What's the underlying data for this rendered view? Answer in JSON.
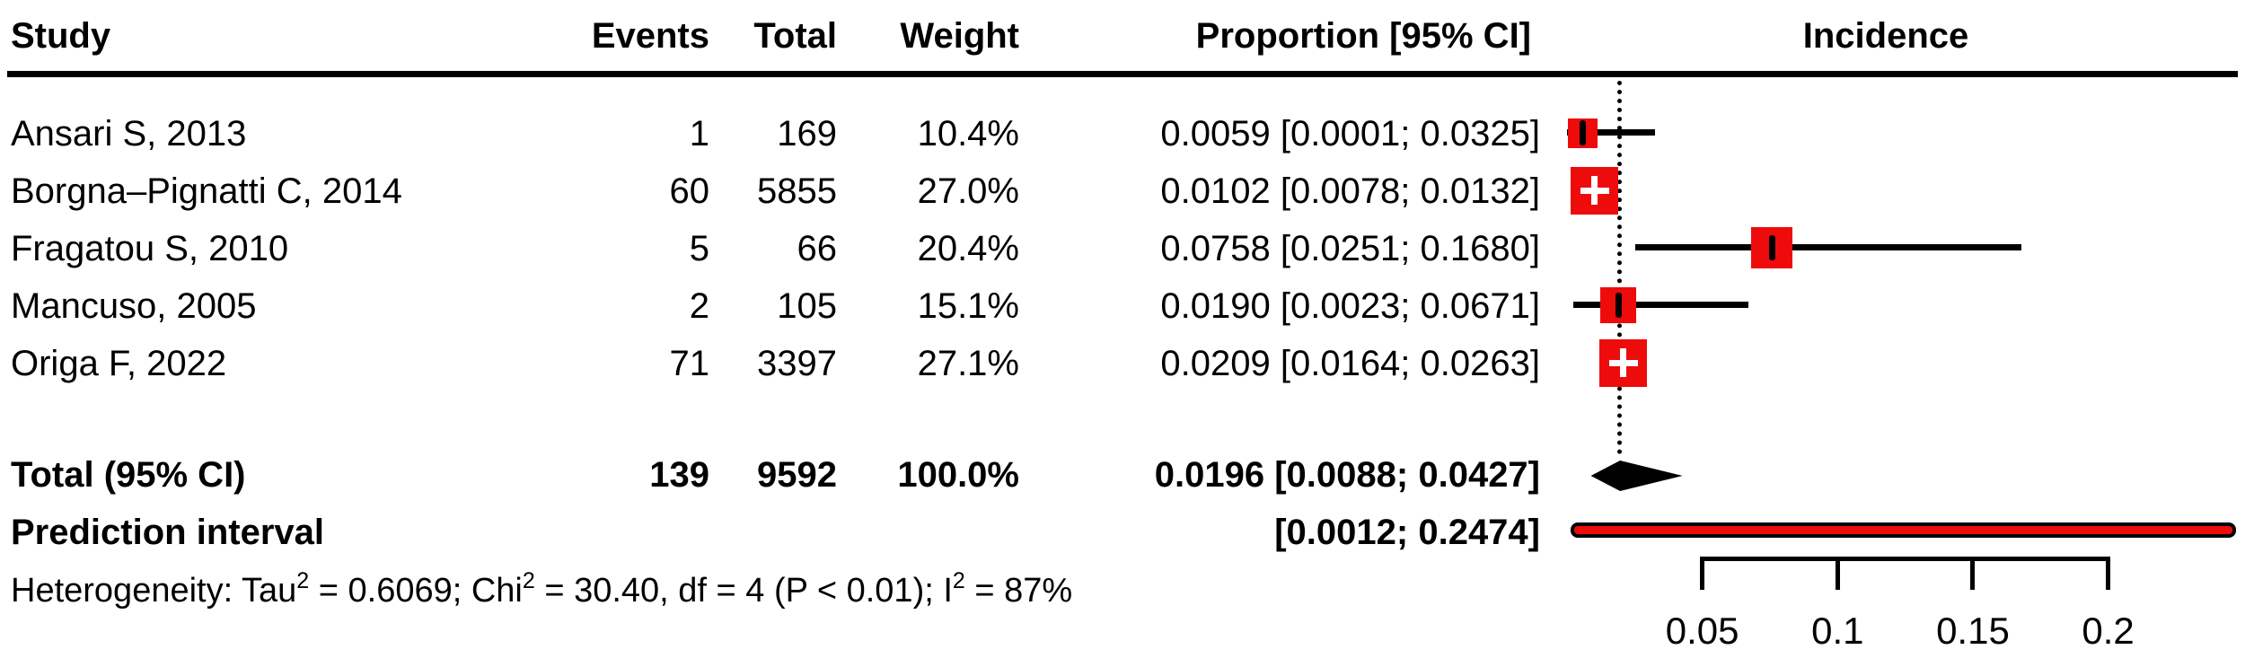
{
  "header": {
    "study": "Study",
    "events": "Events",
    "total": "Total",
    "weight": "Weight",
    "proportion": "Proportion [95% CI]",
    "incidence": "Incidence"
  },
  "chart_data": {
    "type": "forest",
    "title": "Incidence",
    "x_axis": {
      "scale": "linear",
      "xlim": [
        0,
        0.25
      ],
      "ticks": [
        {
          "label": "0.05",
          "value": 0.05
        },
        {
          "label": "0.1",
          "value": 0.1
        },
        {
          "label": "0.15",
          "value": 0.15
        },
        {
          "label": "0.2",
          "value": 0.2
        }
      ]
    },
    "studies": [
      {
        "name": "Ansari S, 2013",
        "events": "1",
        "total": "169",
        "weight_label": "10.4%",
        "weight_pct": 10.4,
        "proportion": 0.0059,
        "ci_low": 0.0001,
        "ci_high": 0.0325,
        "proportion_label": "0.0059 [0.0001; 0.0325]"
      },
      {
        "name": "Borgna–Pignatti C, 2014",
        "events": "60",
        "total": "5855",
        "weight_label": "27.0%",
        "weight_pct": 27.0,
        "proportion": 0.0102,
        "ci_low": 0.0078,
        "ci_high": 0.0132,
        "proportion_label": "0.0102 [0.0078; 0.0132]"
      },
      {
        "name": "Fragatou S, 2010",
        "events": "5",
        "total": "66",
        "weight_label": "20.4%",
        "weight_pct": 20.4,
        "proportion": 0.0758,
        "ci_low": 0.0251,
        "ci_high": 0.168,
        "proportion_label": "0.0758 [0.0251; 0.1680]"
      },
      {
        "name": "Mancuso, 2005",
        "events": "2",
        "total": "105",
        "weight_label": "15.1%",
        "weight_pct": 15.1,
        "proportion": 0.019,
        "ci_low": 0.0023,
        "ci_high": 0.0671,
        "proportion_label": "0.0190 [0.0023; 0.0671]"
      },
      {
        "name": "Origa F, 2022",
        "events": "71",
        "total": "3397",
        "weight_label": "27.1%",
        "weight_pct": 27.1,
        "proportion": 0.0209,
        "ci_low": 0.0164,
        "ci_high": 0.0263,
        "proportion_label": "0.0209 [0.0164; 0.0263]"
      }
    ],
    "total": {
      "label": "Total (95% CI)",
      "events": "139",
      "total": "9592",
      "weight_label": "100.0%",
      "proportion": 0.0196,
      "ci_low": 0.0088,
      "ci_high": 0.0427,
      "proportion_label": "0.0196 [0.0088; 0.0427]"
    },
    "prediction_interval": {
      "label": "Prediction interval",
      "ci_low": 0.0012,
      "ci_high": 0.2474,
      "interval_label": "[0.0012; 0.2474]"
    },
    "pooled_estimate_line": 0.0196,
    "heterogeneity": {
      "t1": "Heterogeneity: Tau",
      "sup1": "2",
      "t2": " = 0.6069; Chi",
      "sup2": "2",
      "t3": " = 30.40, df = 4 (P < 0.01); I",
      "sup3": "2",
      "t4": " = 87%",
      "full_text": "Heterogeneity: Tau2 = 0.6069; Chi2 = 30.40, df = 4 (P < 0.01); I2 = 87%"
    },
    "colors": {
      "square": "#ee0b0b",
      "diamond": "#000000",
      "prediction_bar_fill": "#ee0b0b",
      "prediction_bar_border": "#000000",
      "text": "#000000"
    }
  }
}
